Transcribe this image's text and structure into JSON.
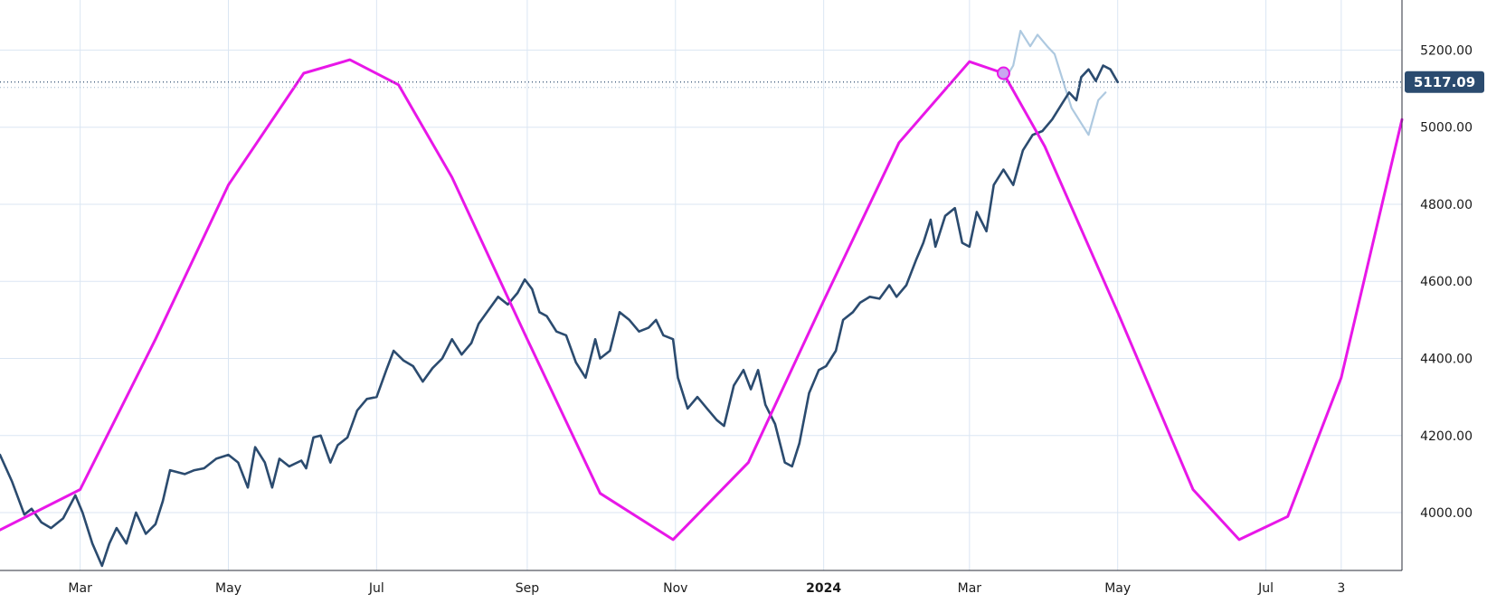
{
  "chart_data": {
    "type": "line",
    "title": "",
    "xlabel": "",
    "ylabel": "",
    "x_range": [
      "2023-01-27",
      "2024-08-26"
    ],
    "ylim": [
      3850,
      5330
    ],
    "y_ticks": [
      {
        "value": 4000,
        "label": "4000.00"
      },
      {
        "value": 4200,
        "label": "4200.00"
      },
      {
        "value": 4400,
        "label": "4400.00"
      },
      {
        "value": 4600,
        "label": "4600.00"
      },
      {
        "value": 4800,
        "label": "4800.00"
      },
      {
        "value": 5000,
        "label": "5000.00"
      },
      {
        "value": 5200,
        "label": "5200.00"
      }
    ],
    "x_ticks": [
      {
        "date": "2023-03-01",
        "label": "Mar",
        "bold": false
      },
      {
        "date": "2023-05-01",
        "label": "May",
        "bold": false
      },
      {
        "date": "2023-07-01",
        "label": "Jul",
        "bold": false
      },
      {
        "date": "2023-09-01",
        "label": "Sep",
        "bold": false
      },
      {
        "date": "2023-11-01",
        "label": "Nov",
        "bold": false
      },
      {
        "date": "2024-01-01",
        "label": "2024",
        "bold": true
      },
      {
        "date": "2024-03-01",
        "label": "Mar",
        "bold": false
      },
      {
        "date": "2024-05-01",
        "label": "May",
        "bold": false
      },
      {
        "date": "2024-07-01",
        "label": "Jul",
        "bold": false
      },
      {
        "date": "2024-08-01",
        "label": "3",
        "bold": false
      }
    ],
    "grid": true,
    "current_value": {
      "value": 5117.09,
      "label": "5117.09",
      "date": "2024-03-15"
    },
    "series": [
      {
        "role": "price",
        "color": "#2b4b6f",
        "points": [
          [
            "2023-01-27",
            4150
          ],
          [
            "2023-02-01",
            4080
          ],
          [
            "2023-02-06",
            3995
          ],
          [
            "2023-02-09",
            4010
          ],
          [
            "2023-02-13",
            3975
          ],
          [
            "2023-02-17",
            3960
          ],
          [
            "2023-02-22",
            3985
          ],
          [
            "2023-02-27",
            4045
          ],
          [
            "2023-03-02",
            4000
          ],
          [
            "2023-03-06",
            3920
          ],
          [
            "2023-03-10",
            3862
          ],
          [
            "2023-03-13",
            3920
          ],
          [
            "2023-03-16",
            3960
          ],
          [
            "2023-03-20",
            3920
          ],
          [
            "2023-03-24",
            4000
          ],
          [
            "2023-03-28",
            3945
          ],
          [
            "2023-04-01",
            3970
          ],
          [
            "2023-04-04",
            4030
          ],
          [
            "2023-04-07",
            4110
          ],
          [
            "2023-04-13",
            4100
          ],
          [
            "2023-04-17",
            4110
          ],
          [
            "2023-04-21",
            4115
          ],
          [
            "2023-04-26",
            4140
          ],
          [
            "2023-05-01",
            4150
          ],
          [
            "2023-05-05",
            4130
          ],
          [
            "2023-05-09",
            4065
          ],
          [
            "2023-05-12",
            4170
          ],
          [
            "2023-05-16",
            4130
          ],
          [
            "2023-05-19",
            4065
          ],
          [
            "2023-05-22",
            4140
          ],
          [
            "2023-05-26",
            4120
          ],
          [
            "2023-05-31",
            4135
          ],
          [
            "2023-06-02",
            4115
          ],
          [
            "2023-06-05",
            4195
          ],
          [
            "2023-06-08",
            4200
          ],
          [
            "2023-06-12",
            4130
          ],
          [
            "2023-06-15",
            4175
          ],
          [
            "2023-06-19",
            4195
          ],
          [
            "2023-06-23",
            4265
          ],
          [
            "2023-06-27",
            4295
          ],
          [
            "2023-07-01",
            4300
          ],
          [
            "2023-07-05",
            4370
          ],
          [
            "2023-07-08",
            4420
          ],
          [
            "2023-07-12",
            4395
          ],
          [
            "2023-07-16",
            4380
          ],
          [
            "2023-07-20",
            4340
          ],
          [
            "2023-07-24",
            4375
          ],
          [
            "2023-07-28",
            4400
          ],
          [
            "2023-08-01",
            4450
          ],
          [
            "2023-08-05",
            4410
          ],
          [
            "2023-08-09",
            4440
          ],
          [
            "2023-08-12",
            4490
          ],
          [
            "2023-08-16",
            4525
          ],
          [
            "2023-08-20",
            4560
          ],
          [
            "2023-08-24",
            4540
          ],
          [
            "2023-08-28",
            4570
          ],
          [
            "2023-08-31",
            4605
          ],
          [
            "2023-09-03",
            4580
          ],
          [
            "2023-09-06",
            4520
          ],
          [
            "2023-09-09",
            4510
          ],
          [
            "2023-09-13",
            4470
          ],
          [
            "2023-09-17",
            4460
          ],
          [
            "2023-09-21",
            4390
          ],
          [
            "2023-09-25",
            4350
          ],
          [
            "2023-09-29",
            4450
          ],
          [
            "2023-10-01",
            4400
          ],
          [
            "2023-10-05",
            4420
          ],
          [
            "2023-10-09",
            4520
          ],
          [
            "2023-10-13",
            4500
          ],
          [
            "2023-10-17",
            4470
          ],
          [
            "2023-10-21",
            4480
          ],
          [
            "2023-10-24",
            4500
          ],
          [
            "2023-10-27",
            4460
          ],
          [
            "2023-10-31",
            4450
          ],
          [
            "2023-11-02",
            4350
          ],
          [
            "2023-11-06",
            4270
          ],
          [
            "2023-11-10",
            4300
          ],
          [
            "2023-11-14",
            4270
          ],
          [
            "2023-11-18",
            4240
          ],
          [
            "2023-11-21",
            4225
          ],
          [
            "2023-11-25",
            4330
          ],
          [
            "2023-11-29",
            4370
          ],
          [
            "2023-12-02",
            4320
          ],
          [
            "2023-12-05",
            4370
          ],
          [
            "2023-12-08",
            4280
          ],
          [
            "2023-12-12",
            4230
          ],
          [
            "2023-12-16",
            4130
          ],
          [
            "2023-12-19",
            4120
          ],
          [
            "2023-12-22",
            4180
          ],
          [
            "2023-12-26",
            4310
          ],
          [
            "2023-12-30",
            4370
          ],
          [
            "2024-01-02",
            4380
          ],
          [
            "2024-01-06",
            4420
          ],
          [
            "2024-01-09",
            4500
          ],
          [
            "2024-01-13",
            4520
          ],
          [
            "2024-01-16",
            4545
          ],
          [
            "2024-01-20",
            4560
          ],
          [
            "2024-01-24",
            4555
          ],
          [
            "2024-01-28",
            4590
          ],
          [
            "2024-01-31",
            4560
          ],
          [
            "2024-02-04",
            4590
          ],
          [
            "2024-02-08",
            4655
          ],
          [
            "2024-02-11",
            4700
          ],
          [
            "2024-02-14",
            4760
          ],
          [
            "2024-02-16",
            4690
          ],
          [
            "2024-02-20",
            4770
          ],
          [
            "2024-02-24",
            4790
          ],
          [
            "2024-02-27",
            4700
          ],
          [
            "2024-03-01",
            4690
          ],
          [
            "2024-03-04",
            4780
          ],
          [
            "2024-03-08",
            4730
          ],
          [
            "2024-03-11",
            4850
          ],
          [
            "2024-03-15",
            4890
          ],
          [
            "2024-03-19",
            4850
          ],
          [
            "2024-03-23",
            4940
          ],
          [
            "2024-03-27",
            4980
          ],
          [
            "2024-03-31",
            4990
          ],
          [
            "2024-04-04",
            5020
          ],
          [
            "2024-04-08",
            5060
          ],
          [
            "2024-04-11",
            5090
          ],
          [
            "2024-04-14",
            5070
          ],
          [
            "2024-04-16",
            5130
          ],
          [
            "2024-04-19",
            5150
          ],
          [
            "2024-04-22",
            5120
          ],
          [
            "2024-04-25",
            5160
          ],
          [
            "2024-04-28",
            5150
          ],
          [
            "2024-05-01",
            5117
          ]
        ]
      },
      {
        "role": "projection",
        "color": "#aec9e0",
        "points": [
          [
            "2024-03-15",
            5117
          ],
          [
            "2024-03-19",
            5160
          ],
          [
            "2024-03-22",
            5250
          ],
          [
            "2024-03-26",
            5210
          ],
          [
            "2024-03-29",
            5240
          ],
          [
            "2024-04-02",
            5210
          ],
          [
            "2024-04-05",
            5190
          ],
          [
            "2024-04-08",
            5130
          ],
          [
            "2024-04-12",
            5050
          ],
          [
            "2024-04-16",
            5010
          ],
          [
            "2024-04-19",
            4980
          ],
          [
            "2024-04-23",
            5070
          ],
          [
            "2024-04-26",
            5090
          ]
        ]
      },
      {
        "role": "cycle",
        "color": "#e817e8",
        "points": [
          [
            "2023-01-27",
            3955
          ],
          [
            "2023-03-01",
            4060
          ],
          [
            "2023-04-01",
            4450
          ],
          [
            "2023-05-01",
            4850
          ],
          [
            "2023-06-01",
            5140
          ],
          [
            "2023-06-20",
            5175
          ],
          [
            "2023-07-10",
            5110
          ],
          [
            "2023-08-01",
            4870
          ],
          [
            "2023-09-01",
            4450
          ],
          [
            "2023-10-01",
            4050
          ],
          [
            "2023-10-31",
            3930
          ],
          [
            "2023-12-01",
            4130
          ],
          [
            "2024-01-01",
            4550
          ],
          [
            "2024-02-01",
            4960
          ],
          [
            "2024-03-01",
            5170
          ],
          [
            "2024-03-15",
            5140
          ],
          [
            "2024-04-01",
            4950
          ],
          [
            "2024-05-01",
            4520
          ],
          [
            "2024-06-01",
            4060
          ],
          [
            "2024-06-20",
            3930
          ],
          [
            "2024-07-10",
            3990
          ],
          [
            "2024-08-01",
            4350
          ],
          [
            "2024-08-26",
            5020
          ]
        ]
      }
    ]
  }
}
